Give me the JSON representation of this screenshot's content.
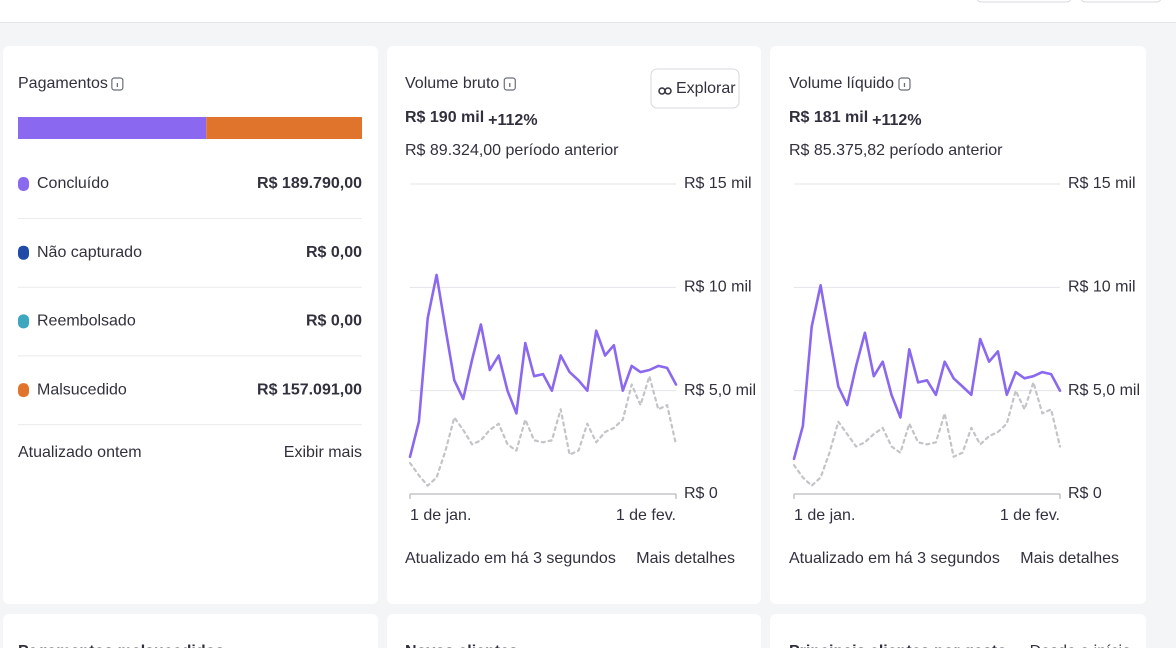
{
  "payments": {
    "title": "Pagamentos",
    "items": [
      "Concluído",
      "Não capturado",
      "Reembolsado",
      "Malsucedido"
    ],
    "values": [
      189790,
      0,
      0,
      157091
    ],
    "value_labels": [
      "R$ 189.790,00",
      "R$ 0,00",
      "R$ 0,00",
      "R$ 157.091,00"
    ],
    "colors": [
      "#8b68f0",
      "#1f4aa8",
      "#3ea7c0",
      "#e0742c"
    ],
    "updated": "Atualizado ontem",
    "link": "Exibir mais"
  },
  "cards": [
    {
      "title": "Volume bruto",
      "value": "R$ 190 mil",
      "change": "+112%",
      "previous": "R$ 89.324,00 período anterior",
      "button": "Explorar",
      "updated": "Atualizado em há 3 segundos",
      "link": "Mais detalhes",
      "chart": {
        "type": "line",
        "categories": [
          "1 de jan.",
          null,
          null,
          null,
          null,
          null,
          null,
          null,
          null,
          null,
          null,
          null,
          null,
          null,
          null,
          null,
          null,
          null,
          null,
          null,
          null,
          null,
          null,
          null,
          null,
          null,
          null,
          null,
          null,
          null,
          "1 de fev."
        ],
        "series": [
          {
            "color": "#8b68f0",
            "style": "solid",
            "values": [
              1.8,
              3.5,
              8.5,
              10.6,
              8.0,
              5.5,
              4.6,
              6.5,
              8.2,
              6.0,
              6.7,
              5.0,
              3.9,
              7.3,
              5.7,
              5.8,
              5.0,
              6.7,
              5.9,
              5.5,
              5.0,
              7.9,
              6.7,
              7.2,
              5.0,
              6.2,
              5.9,
              6.0,
              6.2,
              6.1,
              5.3
            ]
          },
          {
            "color": "#c4c4c8",
            "style": "dotted",
            "values": [
              1.5,
              0.9,
              0.4,
              0.8,
              2.1,
              3.7,
              3.1,
              2.4,
              2.6,
              3.1,
              3.4,
              2.4,
              2.1,
              3.6,
              2.6,
              2.5,
              2.6,
              4.1,
              1.9,
              2.1,
              3.4,
              2.5,
              3.0,
              3.2,
              3.6,
              5.3,
              4.3,
              5.7,
              4.1,
              4.3,
              2.4
            ]
          }
        ],
        "ylim": [
          0,
          15
        ],
        "yticks": [
          {
            "value": 0,
            "label": "R$ 0"
          },
          {
            "value": 5,
            "label": "R$ 5,0 mil"
          },
          {
            "value": 10,
            "label": "R$ 10 mil"
          },
          {
            "value": 15,
            "label": "R$ 15 mil"
          }
        ],
        "grid": true
      }
    },
    {
      "title": "Volume líquido",
      "value": "R$ 181 mil",
      "change": "+112%",
      "previous": "R$ 85.375,82 período anterior",
      "updated": "Atualizado em há 3 segundos",
      "link": "Mais detalhes",
      "chart": {
        "type": "line",
        "categories": [
          "1 de jan.",
          null,
          null,
          null,
          null,
          null,
          null,
          null,
          null,
          null,
          null,
          null,
          null,
          null,
          null,
          null,
          null,
          null,
          null,
          null,
          null,
          null,
          null,
          null,
          null,
          null,
          null,
          null,
          null,
          null,
          "1 de fev."
        ],
        "series": [
          {
            "color": "#8b68f0",
            "style": "solid",
            "values": [
              1.7,
              3.3,
              8.1,
              10.1,
              7.6,
              5.2,
              4.3,
              6.2,
              7.8,
              5.7,
              6.4,
              4.8,
              3.7,
              7.0,
              5.4,
              5.5,
              4.8,
              6.4,
              5.6,
              5.2,
              4.8,
              7.5,
              6.4,
              6.9,
              4.8,
              5.9,
              5.6,
              5.7,
              5.9,
              5.8,
              5.0
            ]
          },
          {
            "color": "#c4c4c8",
            "style": "dotted",
            "values": [
              1.4,
              0.8,
              0.4,
              0.8,
              2.0,
              3.5,
              2.9,
              2.3,
              2.5,
              2.9,
              3.2,
              2.3,
              2.0,
              3.4,
              2.5,
              2.4,
              2.5,
              3.9,
              1.8,
              2.0,
              3.2,
              2.4,
              2.8,
              3.0,
              3.4,
              5.0,
              4.1,
              5.4,
              3.9,
              4.1,
              2.3
            ]
          }
        ],
        "ylim": [
          0,
          15
        ],
        "yticks": [
          {
            "value": 0,
            "label": "R$ 0"
          },
          {
            "value": 5,
            "label": "R$ 5,0 mil"
          },
          {
            "value": 10,
            "label": "R$ 10 mil"
          },
          {
            "value": 15,
            "label": "R$ 15 mil"
          }
        ],
        "grid": true
      }
    }
  ],
  "bottom": [
    "Pagamentos malsucedidos",
    "Novos clientes",
    "Principais clientes por gasto",
    "Desde o início"
  ]
}
